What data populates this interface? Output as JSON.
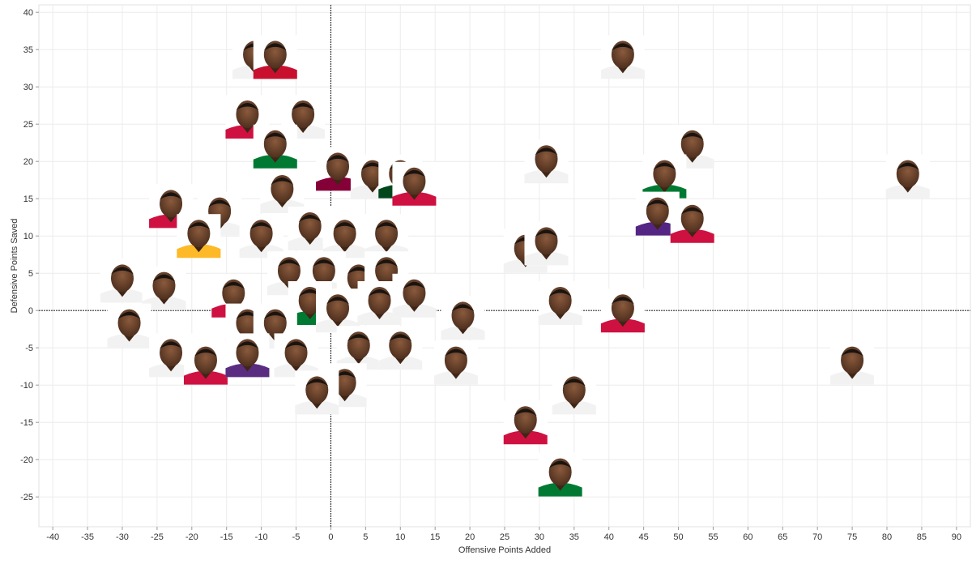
{
  "chart_data": {
    "type": "scatter",
    "xlabel": "Offensive Points Added",
    "ylabel": "Defensive Points Saved",
    "xlim": [
      -42,
      92
    ],
    "ylim": [
      -29,
      41
    ],
    "x_ticks": [
      -40,
      -35,
      -30,
      -25,
      -20,
      -15,
      -10,
      -5,
      0,
      5,
      10,
      15,
      20,
      25,
      30,
      35,
      40,
      45,
      50,
      55,
      60,
      65,
      70,
      75,
      80,
      85,
      90
    ],
    "y_ticks": [
      40,
      35,
      30,
      25,
      20,
      15,
      10,
      5,
      0,
      -5,
      -10,
      -15,
      -20,
      -25
    ],
    "grid": true,
    "marker": "player-headshot",
    "points": [
      {
        "x": -11,
        "y": 34,
        "color": "#f2f2f2"
      },
      {
        "x": -8,
        "y": 34,
        "color": "#c8102e"
      },
      {
        "x": -12,
        "y": 26,
        "color": "#ce1141"
      },
      {
        "x": -4,
        "y": 26,
        "color": "#f2f2f2"
      },
      {
        "x": -8,
        "y": 22,
        "color": "#007a33"
      },
      {
        "x": 1,
        "y": 19,
        "color": "#860038"
      },
      {
        "x": 6,
        "y": 18,
        "color": "#f2f2f2"
      },
      {
        "x": 10,
        "y": 18,
        "color": "#00471b"
      },
      {
        "x": 12,
        "y": 17,
        "color": "#ce1141"
      },
      {
        "x": -7,
        "y": 16,
        "color": "#f2f2f2"
      },
      {
        "x": -23,
        "y": 14,
        "color": "#ce1141"
      },
      {
        "x": -16,
        "y": 13,
        "color": "#f2f2f2"
      },
      {
        "x": -19,
        "y": 10,
        "color": "#fdb927"
      },
      {
        "x": -10,
        "y": 10,
        "color": "#f2f2f2"
      },
      {
        "x": -3,
        "y": 11,
        "color": "#f2f2f2"
      },
      {
        "x": 2,
        "y": 10,
        "color": "#f2f2f2"
      },
      {
        "x": 8,
        "y": 10,
        "color": "#f2f2f2"
      },
      {
        "x": -30,
        "y": 4,
        "color": "#f2f2f2"
      },
      {
        "x": -24,
        "y": 3,
        "color": "#f2f2f2"
      },
      {
        "x": -14,
        "y": 2,
        "color": "#ce1141"
      },
      {
        "x": -6,
        "y": 5,
        "color": "#f2f2f2"
      },
      {
        "x": -1,
        "y": 5,
        "color": "#f2f2f2"
      },
      {
        "x": 4,
        "y": 4,
        "color": "#f2f2f2"
      },
      {
        "x": 8,
        "y": 5,
        "color": "#00471b"
      },
      {
        "x": -3,
        "y": 1,
        "color": "#007a33"
      },
      {
        "x": 1,
        "y": 0,
        "color": "#f2f2f2"
      },
      {
        "x": 7,
        "y": 1,
        "color": "#f2f2f2"
      },
      {
        "x": 12,
        "y": 2,
        "color": "#f2f2f2"
      },
      {
        "x": -29,
        "y": -2,
        "color": "#f2f2f2"
      },
      {
        "x": -12,
        "y": -2,
        "color": "#ce1141"
      },
      {
        "x": -8,
        "y": -2,
        "color": "#f2f2f2"
      },
      {
        "x": 19,
        "y": -1,
        "color": "#f2f2f2"
      },
      {
        "x": -23,
        "y": -6,
        "color": "#f2f2f2"
      },
      {
        "x": -18,
        "y": -7,
        "color": "#ce1141"
      },
      {
        "x": -12,
        "y": -6,
        "color": "#5a2d81"
      },
      {
        "x": -5,
        "y": -6,
        "color": "#f2f2f2"
      },
      {
        "x": 4,
        "y": -5,
        "color": "#f2f2f2"
      },
      {
        "x": 10,
        "y": -5,
        "color": "#f2f2f2"
      },
      {
        "x": 18,
        "y": -7,
        "color": "#f2f2f2"
      },
      {
        "x": 2,
        "y": -10,
        "color": "#f2f2f2"
      },
      {
        "x": -2,
        "y": -11,
        "color": "#f2f2f2"
      },
      {
        "x": 28,
        "y": 8,
        "color": "#f2f2f2"
      },
      {
        "x": 31,
        "y": 9,
        "color": "#f2f2f2"
      },
      {
        "x": 31,
        "y": 20,
        "color": "#f2f2f2"
      },
      {
        "x": 42,
        "y": 34,
        "color": "#f2f2f2"
      },
      {
        "x": 52,
        "y": 22,
        "color": "#f2f2f2"
      },
      {
        "x": 48,
        "y": 18,
        "color": "#007a33"
      },
      {
        "x": 47,
        "y": 13,
        "color": "#552583"
      },
      {
        "x": 52,
        "y": 12,
        "color": "#ce1141"
      },
      {
        "x": 83,
        "y": 18,
        "color": "#f2f2f2"
      },
      {
        "x": 33,
        "y": 1,
        "color": "#f2f2f2"
      },
      {
        "x": 42,
        "y": 0,
        "color": "#ce1141"
      },
      {
        "x": 75,
        "y": -7,
        "color": "#f2f2f2"
      },
      {
        "x": 35,
        "y": -11,
        "color": "#f2f2f2"
      },
      {
        "x": 28,
        "y": -15,
        "color": "#ce1141"
      },
      {
        "x": 33,
        "y": -22,
        "color": "#007a33"
      }
    ]
  }
}
